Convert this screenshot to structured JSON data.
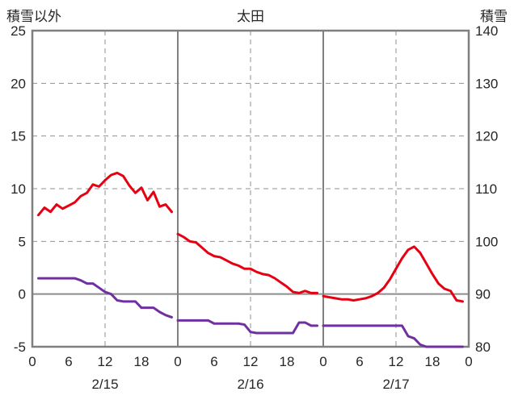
{
  "chart_data": {
    "type": "line",
    "title": "太田",
    "left_axis_label": "積雪以外",
    "right_axis_label": "積雪",
    "left_ylim": [
      -5,
      25
    ],
    "right_ylim": [
      80,
      140
    ],
    "left_ticks": [
      25,
      20,
      15,
      10,
      5,
      0,
      -5
    ],
    "right_ticks": [
      140,
      130,
      120,
      110,
      100,
      90,
      80
    ],
    "x_range_hours": [
      0,
      72
    ],
    "x_tick_labels": [
      "0",
      "6",
      "12",
      "18",
      "0",
      "6",
      "12",
      "18",
      "0",
      "6",
      "12",
      "18",
      "0"
    ],
    "day_labels": [
      {
        "label": "2/15",
        "hour": 12
      },
      {
        "label": "2/16",
        "hour": 36
      },
      {
        "label": "2/17",
        "hour": 60
      }
    ],
    "grid": {
      "dashed_h_left_values": [
        20,
        15,
        10,
        5
      ],
      "dashed_v_hours": [
        12,
        36,
        60
      ],
      "solid_v_hours": [
        24,
        48
      ],
      "zero_line_left_value": 0
    },
    "colors": {
      "temperature_line": "#e60012",
      "snow_line": "#7030a0",
      "grid": "#808080",
      "text": "#262626"
    },
    "legend_position": "none",
    "series": [
      {
        "name": "sekisetsu-igai",
        "axis": "left",
        "color": "#e60012",
        "segments": [
          {
            "start_hour": 1,
            "values": [
              7.5,
              8.2,
              7.8,
              8.5,
              8.1,
              8.4,
              8.7,
              9.3,
              9.6,
              10.4,
              10.2,
              10.8,
              11.3,
              11.5,
              11.2,
              10.3,
              9.6,
              10.1,
              8.9,
              9.7,
              8.3,
              8.5,
              7.8
            ]
          },
          {
            "start_hour": 24,
            "values": [
              5.7,
              5.4,
              5.0,
              4.9,
              4.4,
              3.9,
              3.6,
              3.5,
              3.2,
              2.9,
              2.7,
              2.4,
              2.4,
              2.1,
              1.9,
              1.8,
              1.5,
              1.1,
              0.7,
              0.2,
              0.1,
              0.3,
              0.1,
              0.1
            ]
          },
          {
            "start_hour": 48,
            "values": [
              -0.2,
              -0.3,
              -0.4,
              -0.5,
              -0.5,
              -0.6,
              -0.5,
              -0.4,
              -0.2,
              0.1,
              0.6,
              1.4,
              2.4,
              3.4,
              4.2,
              4.5,
              3.9,
              2.9,
              1.9,
              1.0,
              0.5,
              0.3,
              -0.6,
              -0.7
            ]
          }
        ]
      },
      {
        "name": "sekisetsu",
        "axis": "right",
        "color": "#7030a0",
        "segments": [
          {
            "start_hour": 1,
            "values": [
              93,
              93,
              93,
              93,
              93,
              93,
              93,
              92.6,
              92,
              92,
              91.2,
              90.4,
              90,
              88.8,
              88.6,
              88.6,
              88.6,
              87.4,
              87.4,
              87.4,
              86.6,
              86,
              85.6
            ]
          },
          {
            "start_hour": 24,
            "values": [
              85,
              85,
              85,
              85,
              85,
              85,
              84.4,
              84.4,
              84.4,
              84.4,
              84.4,
              84.2,
              82.8,
              82.6,
              82.6,
              82.6,
              82.6,
              82.6,
              82.6,
              82.6,
              84.6,
              84.6,
              84,
              84
            ]
          },
          {
            "start_hour": 48,
            "values": [
              84,
              84,
              84,
              84,
              84,
              84,
              84,
              84,
              84,
              84,
              84,
              84,
              84,
              84,
              82,
              81.6,
              80.4,
              80,
              80,
              80,
              80,
              80,
              80,
              80
            ]
          }
        ]
      }
    ]
  }
}
